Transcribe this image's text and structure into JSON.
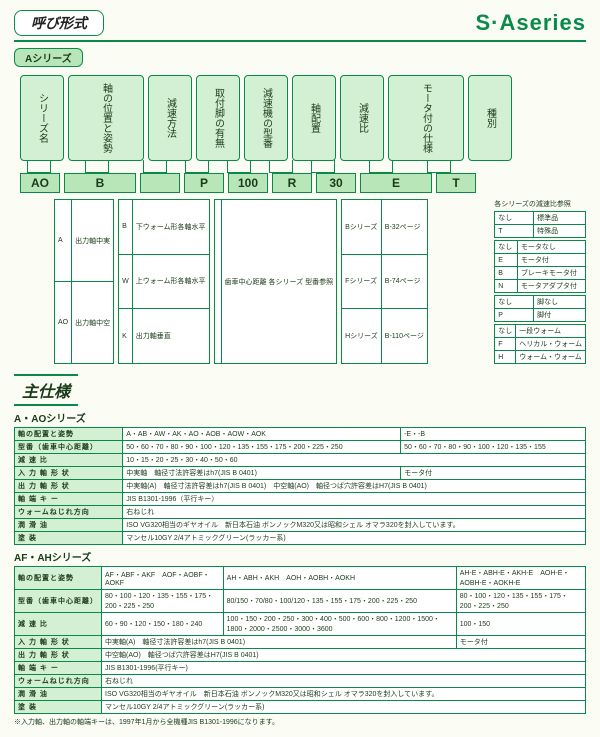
{
  "header": {
    "title": "呼び形式",
    "brand_left": "S",
    "brand_right": "Aseries"
  },
  "series_badge": "Aシリーズ",
  "labels": [
    "シリーズ名",
    "軸の位置と姿勢",
    "減速方法",
    "取付脚の有無",
    "減速機の型番",
    "軸配置",
    "減速比",
    "モータ付の仕様",
    "種別"
  ],
  "codes": [
    "AO",
    "B",
    "",
    "P",
    "100",
    "R",
    "30",
    "E",
    "T"
  ],
  "note_ratio": "各シリーズの減速比参照",
  "tbl_A": [
    [
      "A",
      "出力軸中実"
    ],
    [
      "AO",
      "出力軸中空"
    ]
  ],
  "tbl_BWK": [
    [
      "B",
      "下ウォーム形各軸水平"
    ],
    [
      "W",
      "上ウォーム形各軸水平"
    ],
    [
      "K",
      "出力軸垂直"
    ]
  ],
  "tbl_gear": [
    [
      "",
      "歯車中心距離 各シリーズ 型番参照"
    ]
  ],
  "tbl_P": [
    [
      "なし",
      "脚なし"
    ],
    [
      "P",
      "脚付"
    ]
  ],
  "tbl_series": [
    [
      "Bシリーズ",
      "B-32ページ"
    ],
    [
      "Fシリーズ",
      "B-74ページ"
    ],
    [
      "Hシリーズ",
      "B-110ページ"
    ]
  ],
  "tbl_T": [
    [
      "なし",
      "標準品"
    ],
    [
      "T",
      "特殊品"
    ]
  ],
  "tbl_motor": [
    [
      "なし",
      "モータなし"
    ],
    [
      "E",
      "モータ付"
    ],
    [
      "B",
      "ブレーキモータ付"
    ],
    [
      "N",
      "モータアダプタ付"
    ]
  ],
  "tbl_worm": [
    [
      "なし",
      "一段ウォーム"
    ],
    [
      "F",
      "ヘリカル・ウォーム"
    ],
    [
      "H",
      "ウォーム・ウォーム"
    ]
  ],
  "sec_title": "主仕様",
  "specA": {
    "title": "A・AOシリーズ",
    "rows": [
      [
        "軸の配置と姿勢",
        "A・AB・AW・AK・AO・AOB・AOW・AOK",
        "",
        "-E・-B"
      ],
      [
        "型番（歯車中心距離）",
        "50・60・70・80・90・100・120・135・155・175・200・225・250",
        "",
        "50・60・70・80・90・100・120・135・155"
      ],
      [
        "減 速 比",
        "10・15・20・25・30・40・50・60",
        "",
        ""
      ],
      [
        "入 力 軸 形 状",
        "中実軸　軸径寸法許容差はh7(JIS B 0401)",
        "",
        "モータ付"
      ],
      [
        "出 力 軸 形 状",
        "中実軸(A)　軸径寸法許容差はh7(JIS B 0401)　中空軸(AO)　軸径つば穴許容差はH7(JIS B 0401)",
        "",
        ""
      ],
      [
        "軸 端 キ ー",
        "JIS B1301-1996（平行キー）",
        "",
        ""
      ],
      [
        "ウォームねじれ方向",
        "右ねじれ",
        "",
        ""
      ],
      [
        "潤 滑 油",
        "ISO VG320相当のギヤオイル　新日本石油 ボンノックM320又は昭和シェル オマラ320を封入しています。",
        "",
        ""
      ],
      [
        "塗 装",
        "マンセル10GY 2/4アトミックグリーン(ラッカー系)",
        "",
        ""
      ]
    ]
  },
  "specAF": {
    "title": "AF・AHシリーズ",
    "rows": [
      [
        "軸の配置と姿勢",
        "AF・ABF・AKF　AOF・AOBF・AOKF",
        "AH・ABH・AKH　AOH・AOBH・AOKH",
        "AH-E・ABH-E・AKH-E　AOH-E・AOBH-E・AOKH-E"
      ],
      [
        "型番（歯車中心距離）",
        "80・100・120・135・155・175・200・225・250",
        "80/150・70/80・100/120・135・155・175・200・225・250",
        "80・100・120・135・155・175・200・225・250"
      ],
      [
        "減 速 比",
        "60・90・120・150・180・240",
        "100・150・200・250・300・400・500・600・800・1200・1500・1800・2000・2500・3000・3600",
        "100・150"
      ],
      [
        "入 力 軸 形 状",
        "中実軸(A)　軸径寸法許容差はh7(JIS B 0401)",
        "",
        "モータ付"
      ],
      [
        "出 力 軸 形 状",
        "中空軸(AO)　軸径つば穴許容差はH7(JIS B 0401)",
        "",
        ""
      ],
      [
        "軸 端 キ ー",
        "JIS B1301-1996(平行キー)",
        "",
        ""
      ],
      [
        "ウォームねじれ方向",
        "右ねじれ",
        "",
        ""
      ],
      [
        "潤 滑 油",
        "ISO VG320相当のギヤオイル　新日本石油 ボンノックM320又は昭和シェル オマラ320を封入しています。",
        "",
        ""
      ],
      [
        "塗 装",
        "マンセル10GY 2/4アトミックグリーン(ラッカー系)",
        "",
        ""
      ]
    ]
  },
  "footnote": "※入力軸、出力軸の軸端キーは、1997年1月から全機種JIS B1301-1996になります。"
}
